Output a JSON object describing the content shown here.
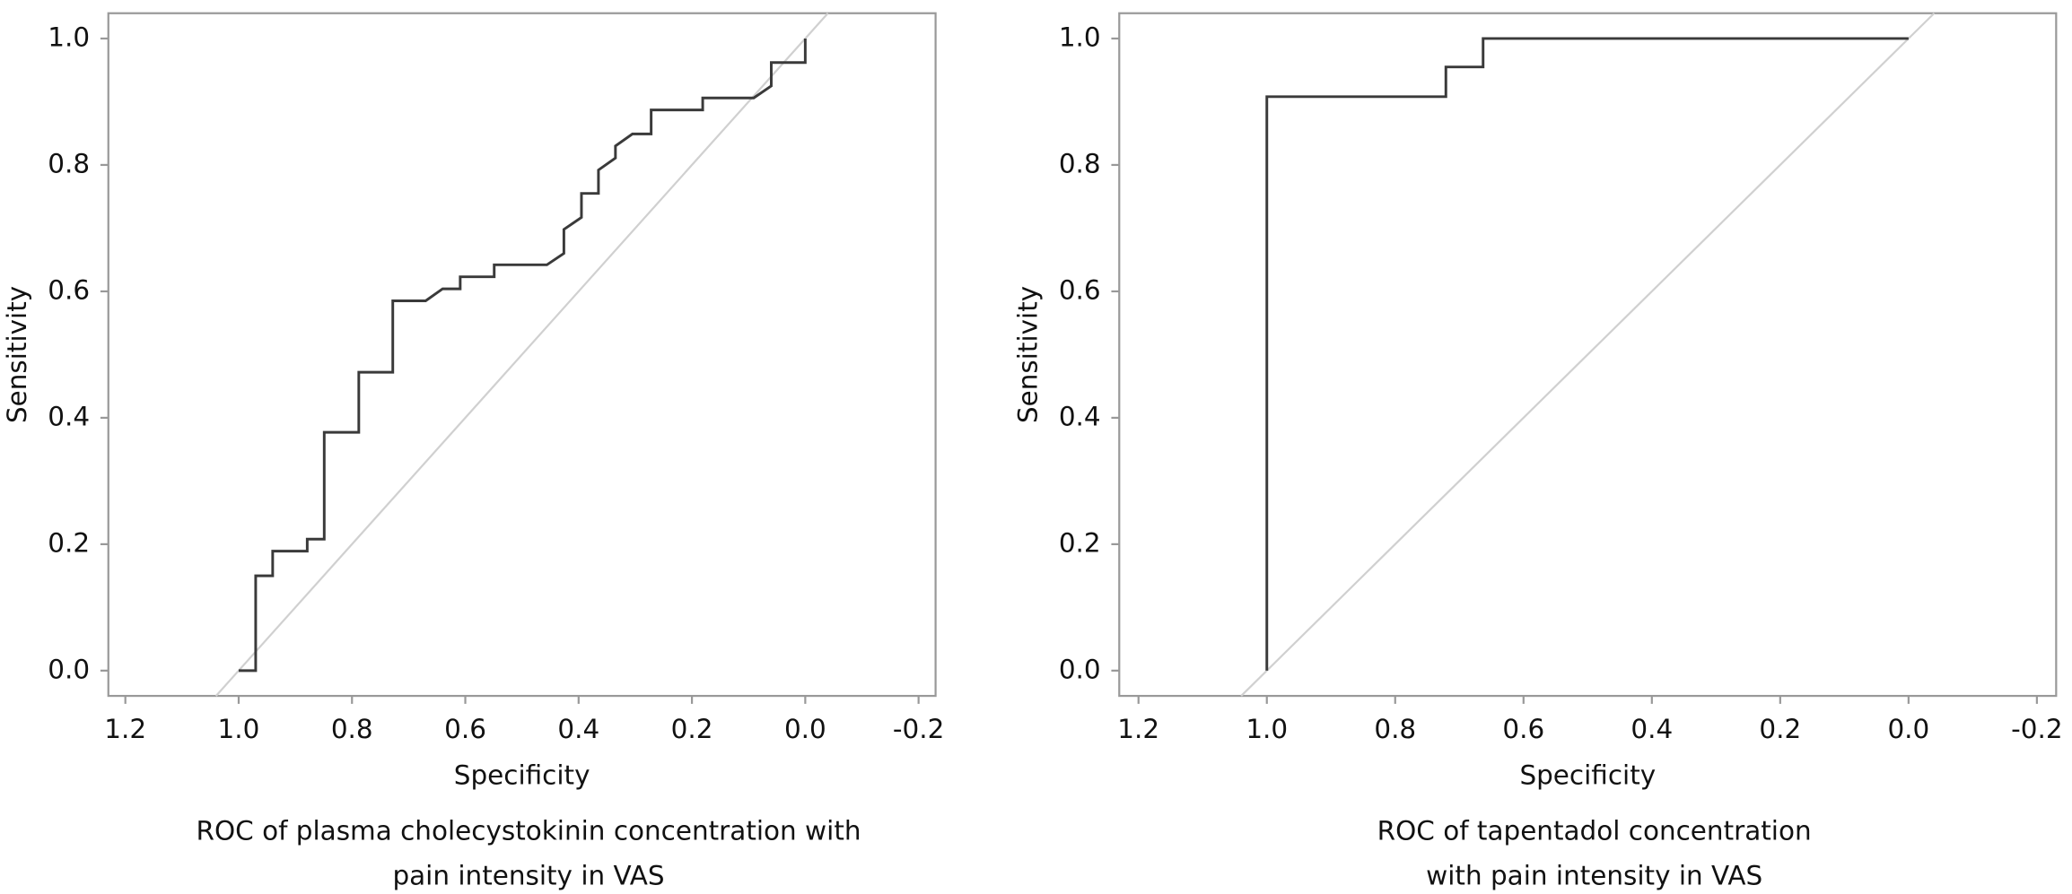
{
  "chart_data": [
    {
      "type": "line",
      "title": [
        "ROC of plasma cholecystokinin concentration with",
        "pain intensity in VAS"
      ],
      "x_label": "Specificity",
      "y_label": "Sensitivity",
      "xlim": [
        1.23,
        -0.23
      ],
      "ylim": [
        -0.04,
        1.04
      ],
      "xticks": [
        1.2,
        {
          "value": 1.0,
          "label": "1.0"
        },
        0.8,
        0.6,
        0.4,
        0.2,
        {
          "value": 0.0,
          "label": "0.0"
        },
        -0.2
      ],
      "yticks": [
        {
          "value": 0.0,
          "label": "0.0"
        },
        0.2,
        0.4,
        0.6,
        0.8,
        {
          "value": 1.0,
          "label": "1.0"
        }
      ],
      "series": [
        {
          "color": "#3a3a3a",
          "x": [
            1.0,
            0.97,
            0.97,
            0.94,
            0.94,
            0.879,
            0.879,
            0.849,
            0.849,
            0.788,
            0.788,
            0.728,
            0.728,
            0.67,
            0.64,
            0.609,
            0.609,
            0.549,
            0.549,
            0.456,
            0.426,
            0.426,
            0.395,
            0.395,
            0.365,
            0.365,
            0.335,
            0.335,
            0.305,
            0.272,
            0.272,
            0.181,
            0.181,
            0.091,
            0.06,
            0.06,
            0.0,
            0.0
          ],
          "values": [
            0.0,
            0.0,
            0.15,
            0.15,
            0.189,
            0.189,
            0.208,
            0.208,
            0.377,
            0.377,
            0.472,
            0.472,
            0.585,
            0.585,
            0.604,
            0.604,
            0.623,
            0.623,
            0.642,
            0.642,
            0.66,
            0.698,
            0.717,
            0.755,
            0.755,
            0.792,
            0.811,
            0.83,
            0.849,
            0.849,
            0.887,
            0.887,
            0.906,
            0.906,
            0.925,
            0.962,
            0.962,
            1.0
          ]
        }
      ]
    },
    {
      "type": "line",
      "title": [
        "ROC of tapentadol concentration",
        "with pain intensity in VAS"
      ],
      "x_label": "Specificity",
      "y_label": "Sensitivity",
      "xlim": [
        1.23,
        -0.23
      ],
      "ylim": [
        -0.04,
        1.04
      ],
      "xticks": [
        1.2,
        {
          "value": 1.0,
          "label": "1.0"
        },
        0.8,
        0.6,
        0.4,
        0.2,
        {
          "value": 0.0,
          "label": "0.0"
        },
        -0.2
      ],
      "yticks": [
        {
          "value": 0.0,
          "label": "0.0"
        },
        0.2,
        0.4,
        0.6,
        0.8,
        {
          "value": 1.0,
          "label": "1.0"
        }
      ],
      "series": [
        {
          "color": "#3a3a3a",
          "x": [
            1.0,
            1.0,
            0.721,
            0.721,
            0.663,
            0.663,
            0.0
          ],
          "values": [
            0.0,
            0.908,
            0.908,
            0.955,
            0.955,
            1.0,
            1.0
          ]
        }
      ]
    }
  ]
}
